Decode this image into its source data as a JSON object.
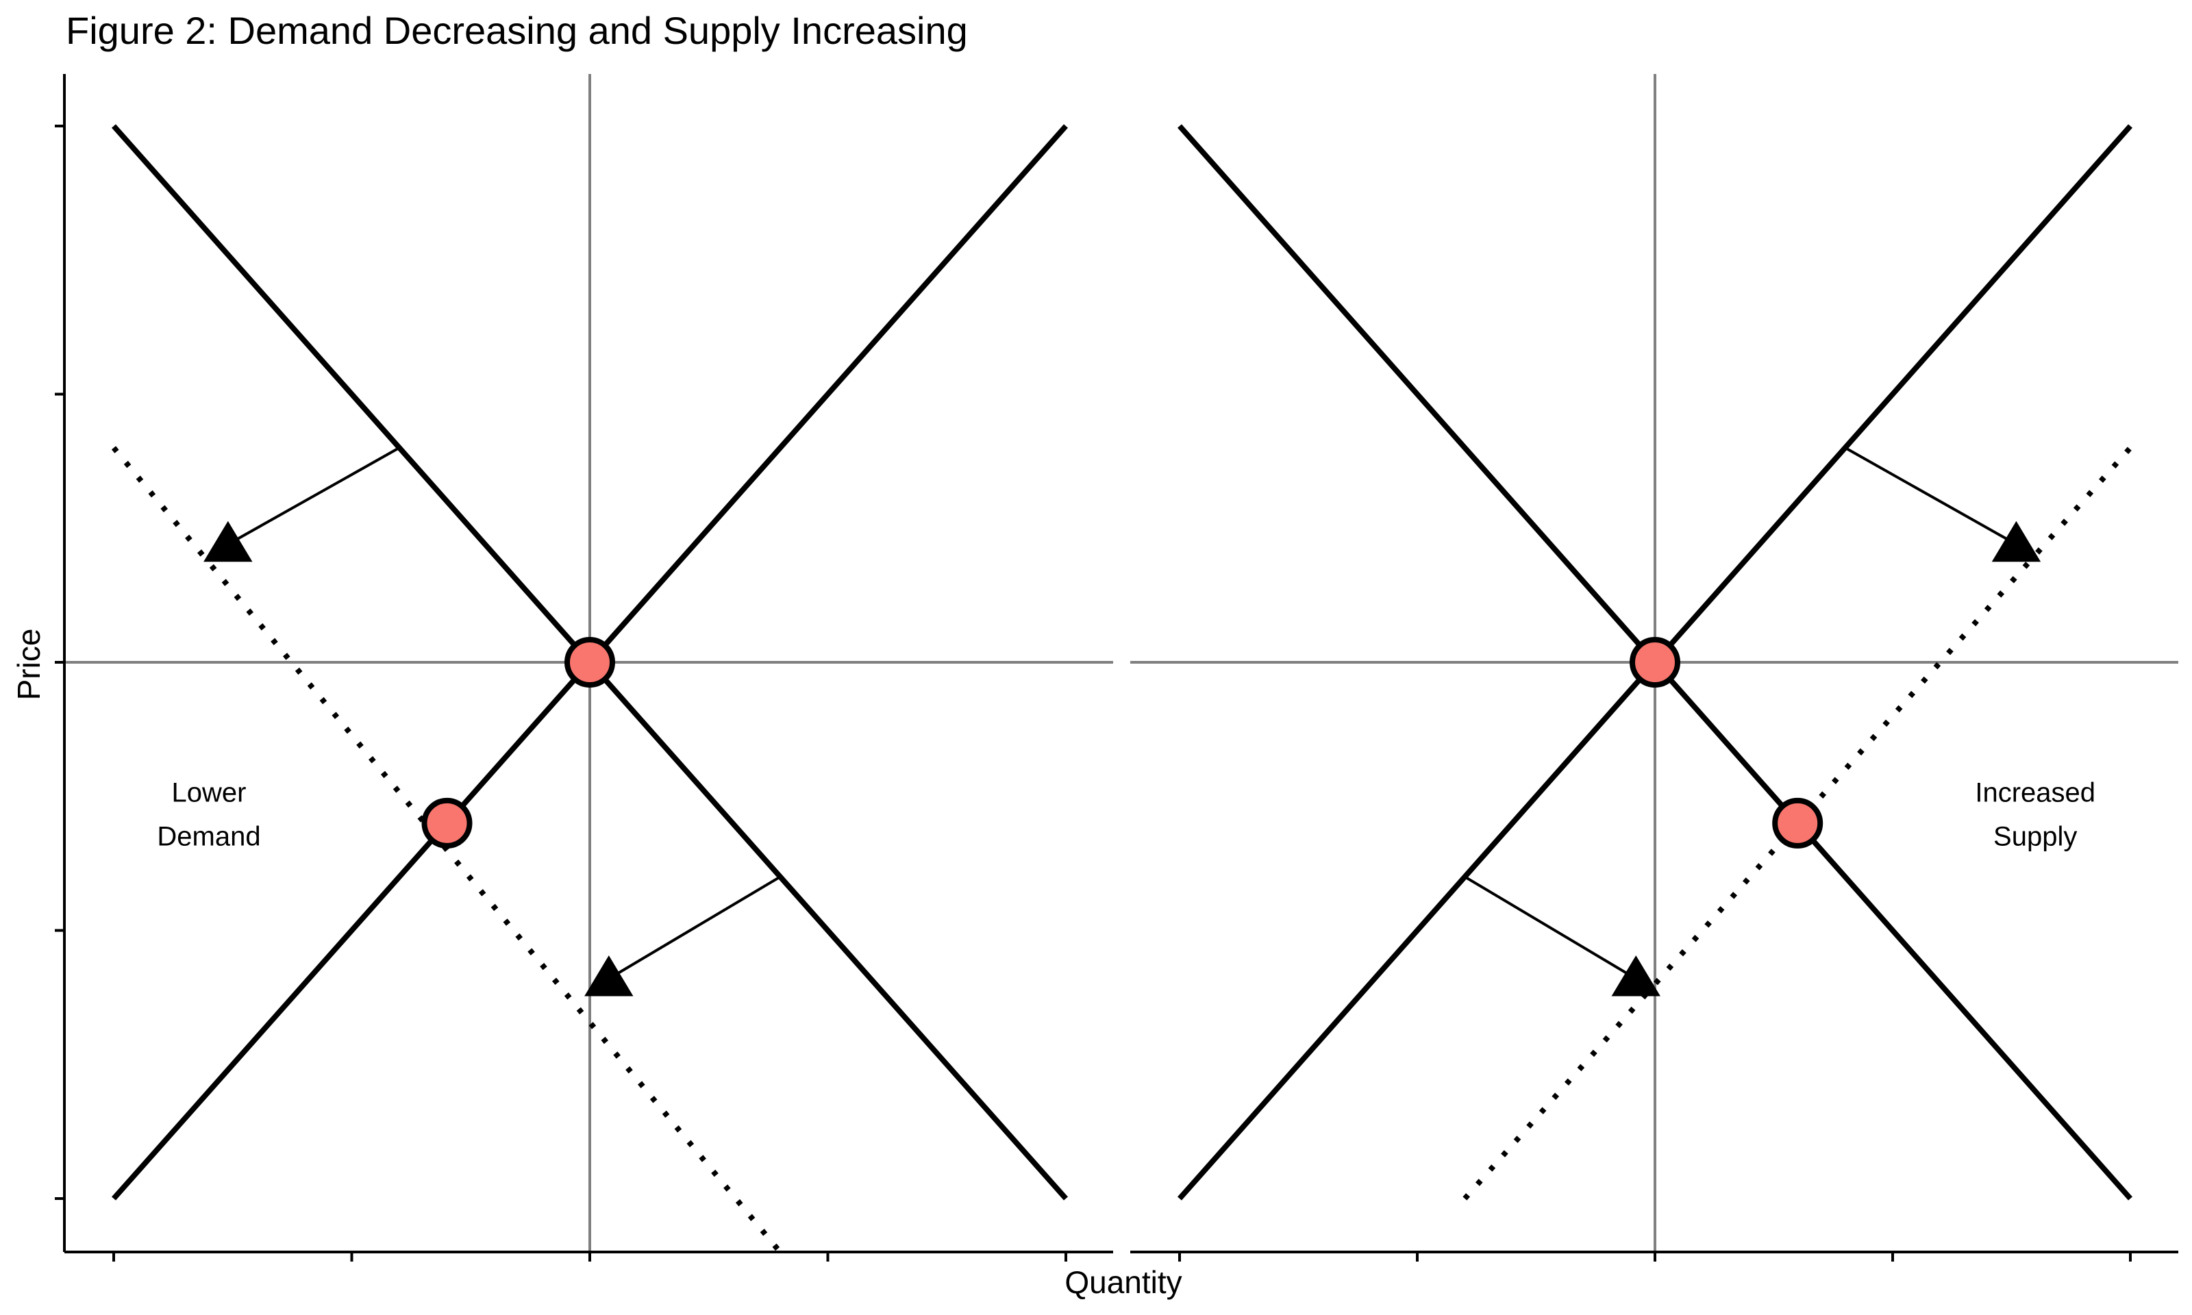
{
  "figure": {
    "title": "Figure 2: Demand Decreasing and Supply Increasing"
  },
  "colors": {
    "curve": "#000000",
    "reference_line": "#808080",
    "equilibrium_point": "#F8766D",
    "point_outline": "#000000"
  },
  "icons": {
    "shift_arrow_head": "triangle-icon"
  },
  "chart_data": [
    {
      "type": "line",
      "panel": "left",
      "xlabel": "Quantity",
      "ylabel": "Price",
      "xlim": [
        0,
        10
      ],
      "ylim": [
        0,
        10
      ],
      "grid": false,
      "legend": "none",
      "reference_lines": {
        "x": 5,
        "y": 5
      },
      "series": [
        {
          "name": "",
          "style": "solid",
          "x": [
            0,
            10
          ],
          "y": [
            10,
            0
          ]
        },
        {
          "name": "",
          "style": "solid",
          "x": [
            0,
            10
          ],
          "y": [
            0,
            10
          ]
        },
        {
          "name": "",
          "style": "dotted",
          "x": [
            0,
            7
          ],
          "y": [
            7,
            -0.5
          ]
        }
      ],
      "points": [
        {
          "x": 5,
          "y": 5
        },
        {
          "x": 3.5,
          "y": 3.5
        }
      ],
      "arrows": [
        {
          "from": [
            3,
            7
          ],
          "to": [
            1.2,
            6.1
          ]
        },
        {
          "from": [
            7,
            3
          ],
          "to": [
            5.2,
            2.05
          ]
        }
      ],
      "annotations": [
        {
          "lines": [
            "Lower",
            "Demand"
          ],
          "x": 1,
          "y": 3.7
        }
      ]
    },
    {
      "type": "line",
      "panel": "right",
      "xlabel": "Quantity",
      "ylabel": "Price",
      "xlim": [
        0,
        10
      ],
      "ylim": [
        0,
        10
      ],
      "grid": false,
      "legend": "none",
      "reference_lines": {
        "x": 5,
        "y": 5
      },
      "series": [
        {
          "name": "",
          "style": "solid",
          "x": [
            0,
            10
          ],
          "y": [
            10,
            0
          ]
        },
        {
          "name": "",
          "style": "solid",
          "x": [
            0,
            10
          ],
          "y": [
            0,
            10
          ]
        },
        {
          "name": "",
          "style": "dotted",
          "x": [
            3,
            10
          ],
          "y": [
            0,
            7
          ]
        }
      ],
      "points": [
        {
          "x": 5,
          "y": 5
        },
        {
          "x": 6.5,
          "y": 3.5
        }
      ],
      "arrows": [
        {
          "from": [
            7,
            7
          ],
          "to": [
            8.8,
            6.1
          ]
        },
        {
          "from": [
            3,
            3
          ],
          "to": [
            4.8,
            2.05
          ]
        }
      ],
      "annotations": [
        {
          "lines": [
            "Increased",
            "Supply"
          ],
          "x": 9,
          "y": 3.7
        }
      ]
    }
  ]
}
